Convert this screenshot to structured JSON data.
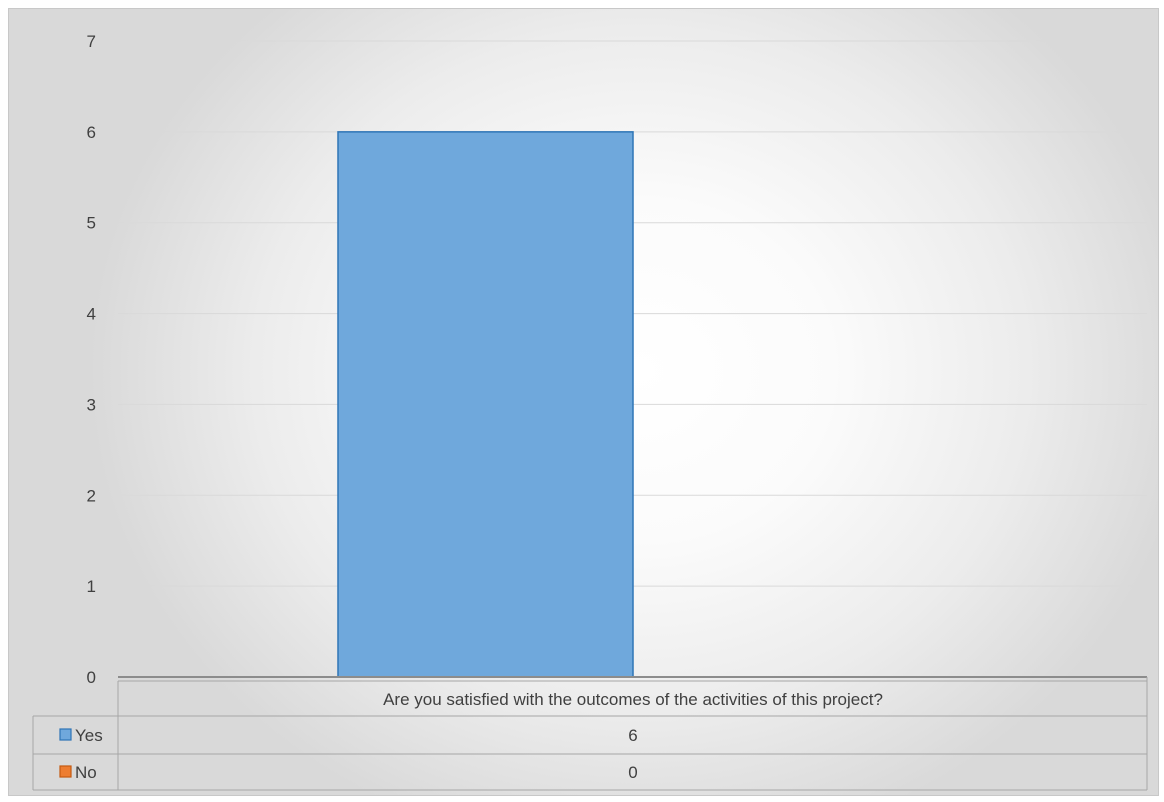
{
  "chart_data": {
    "type": "bar",
    "categories": [
      "Are you satisfied with the outcomes of the activities of this project?"
    ],
    "series": [
      {
        "name": "Yes",
        "values": [
          6
        ],
        "color": "#6FA8DC",
        "border": "#2E75B6"
      },
      {
        "name": "No",
        "values": [
          0
        ],
        "color": "#ED7D31",
        "border": "#C55A11"
      }
    ],
    "y_ticks": [
      "0",
      "1",
      "2",
      "3",
      "4",
      "5",
      "6",
      "7"
    ],
    "ylim": [
      0,
      7
    ],
    "grid": true,
    "legend": "data-table",
    "table_rows": [
      {
        "label": "Yes",
        "value": "6"
      },
      {
        "label": "No",
        "value": "0"
      }
    ]
  }
}
